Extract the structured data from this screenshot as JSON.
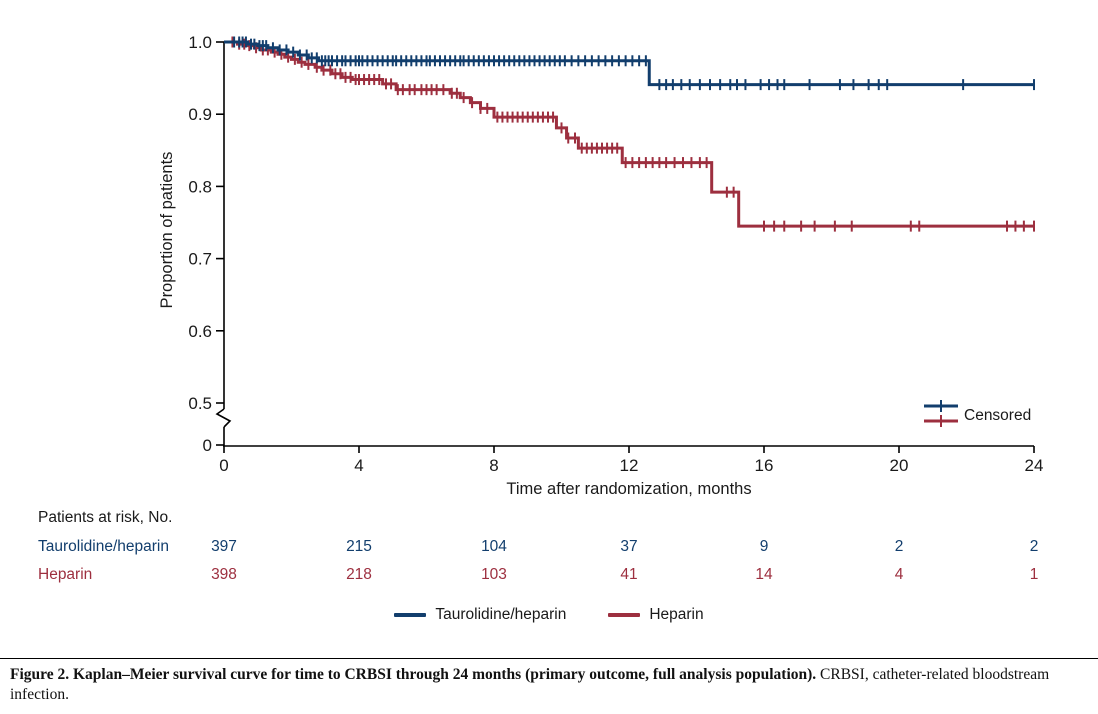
{
  "chart_data": {
    "type": "line",
    "subtype": "kaplan-meier-step",
    "title": "",
    "xlabel": "Time after randomization, months",
    "ylabel": "Proportion of patients",
    "xlim": [
      0,
      24
    ],
    "x_ticks": [
      0,
      4,
      8,
      12,
      16,
      20,
      24
    ],
    "y_ticks": [
      1.0,
      0.9,
      0.8,
      0.7,
      0.6,
      0.5
    ],
    "y_axis_break": true,
    "y_zero_label": "0",
    "grid": false,
    "censored_legend_label": "Censored",
    "series": [
      {
        "name": "Heparin",
        "color": "#9d2f3f",
        "steps": [
          [
            0,
            1.0
          ],
          [
            0.4,
            0.997
          ],
          [
            0.7,
            0.995
          ],
          [
            0.9,
            0.992
          ],
          [
            1.1,
            0.989
          ],
          [
            1.4,
            0.986
          ],
          [
            1.6,
            0.983
          ],
          [
            1.8,
            0.979
          ],
          [
            2.0,
            0.976
          ],
          [
            2.2,
            0.972
          ],
          [
            2.4,
            0.969
          ],
          [
            2.7,
            0.965
          ],
          [
            2.9,
            0.961
          ],
          [
            3.2,
            0.956
          ],
          [
            3.5,
            0.951
          ],
          [
            3.8,
            0.948
          ],
          [
            4.7,
            0.942
          ],
          [
            5.1,
            0.934
          ],
          [
            6.7,
            0.929
          ],
          [
            7.0,
            0.923
          ],
          [
            7.3,
            0.916
          ],
          [
            7.6,
            0.908
          ],
          [
            8.0,
            0.896
          ],
          [
            9.85,
            0.881
          ],
          [
            10.15,
            0.867
          ],
          [
            10.5,
            0.853
          ],
          [
            11.8,
            0.833
          ],
          [
            14.45,
            0.792
          ],
          [
            15.25,
            0.745
          ]
        ],
        "censor_ticks": [
          0.25,
          0.45,
          0.6,
          0.75,
          0.95,
          1.15,
          1.3,
          1.5,
          1.7,
          1.9,
          2.1,
          2.3,
          2.5,
          2.75,
          2.95,
          3.15,
          3.3,
          3.45,
          3.6,
          3.75,
          3.9,
          4.0,
          4.15,
          4.3,
          4.45,
          4.6,
          4.8,
          4.95,
          5.15,
          5.3,
          5.5,
          5.65,
          5.85,
          6.0,
          6.15,
          6.3,
          6.5,
          6.75,
          6.9,
          7.1,
          7.35,
          7.6,
          7.8,
          8.1,
          8.25,
          8.4,
          8.55,
          8.7,
          8.85,
          9.0,
          9.15,
          9.3,
          9.45,
          9.6,
          9.75,
          10.0,
          10.2,
          10.4,
          10.6,
          10.75,
          10.9,
          11.05,
          11.2,
          11.35,
          11.5,
          11.65,
          11.9,
          12.1,
          12.3,
          12.5,
          12.7,
          12.9,
          13.1,
          13.35,
          13.6,
          13.85,
          14.1,
          14.3,
          14.9,
          15.1,
          16.0,
          16.3,
          16.6,
          17.1,
          17.5,
          18.1,
          18.6,
          20.35,
          20.6,
          23.2,
          23.45,
          23.7,
          24.0
        ]
      },
      {
        "name": "Taurolidine/heparin",
        "color": "#123e6d",
        "steps": [
          [
            0,
            1.0
          ],
          [
            0.7,
            0.997
          ],
          [
            1.0,
            0.995
          ],
          [
            1.3,
            0.992
          ],
          [
            1.6,
            0.989
          ],
          [
            1.9,
            0.986
          ],
          [
            2.2,
            0.982
          ],
          [
            2.5,
            0.978
          ],
          [
            2.8,
            0.974
          ],
          [
            12.6,
            0.941
          ]
        ],
        "censor_ticks": [
          0.3,
          0.45,
          0.55,
          0.65,
          0.8,
          0.9,
          1.05,
          1.15,
          1.25,
          1.45,
          1.65,
          1.85,
          2.05,
          2.25,
          2.45,
          2.6,
          2.75,
          2.9,
          3.0,
          3.1,
          3.2,
          3.35,
          3.5,
          3.6,
          3.75,
          3.9,
          4.0,
          4.1,
          4.25,
          4.4,
          4.55,
          4.7,
          4.85,
          5.0,
          5.1,
          5.25,
          5.4,
          5.55,
          5.7,
          5.85,
          6.0,
          6.1,
          6.25,
          6.4,
          6.55,
          6.7,
          6.85,
          7.0,
          7.1,
          7.25,
          7.4,
          7.55,
          7.7,
          7.85,
          8.0,
          8.15,
          8.3,
          8.45,
          8.6,
          8.75,
          8.9,
          9.05,
          9.2,
          9.35,
          9.5,
          9.65,
          9.8,
          9.95,
          10.1,
          10.3,
          10.5,
          10.7,
          10.9,
          11.1,
          11.3,
          11.5,
          11.7,
          11.9,
          12.1,
          12.3,
          12.5,
          12.9,
          13.1,
          13.3,
          13.55,
          13.8,
          14.1,
          14.4,
          14.7,
          15.0,
          15.2,
          15.45,
          15.9,
          16.15,
          16.4,
          16.6,
          17.35,
          18.25,
          18.65,
          19.1,
          19.4,
          19.65,
          21.9,
          24.0
        ]
      }
    ]
  },
  "risk_table": {
    "title": "Patients at risk, No.",
    "months": [
      0,
      4,
      8,
      12,
      16,
      20,
      24
    ],
    "rows": [
      {
        "label": "Taurolidine/heparin",
        "color": "#123e6d",
        "values": [
          "397",
          "215",
          "104",
          "37",
          "9",
          "2",
          "2"
        ]
      },
      {
        "label": "Heparin",
        "color": "#9d2f3f",
        "values": [
          "398",
          "218",
          "103",
          "41",
          "14",
          "4",
          "1"
        ]
      }
    ]
  },
  "legend": {
    "items": [
      {
        "label": "Taurolidine/heparin",
        "color": "#123e6d"
      },
      {
        "label": "Heparin",
        "color": "#9d2f3f"
      }
    ]
  },
  "caption": {
    "bold": "Figure 2. Kaplan–Meier survival curve for time to CRBSI through 24 months (primary outcome, full analysis population).",
    "regular": " CRBSI, catheter-related bloodstream infection."
  }
}
